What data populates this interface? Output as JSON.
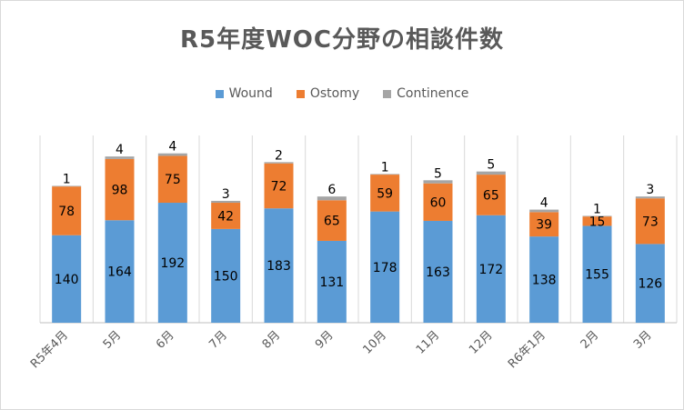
{
  "chart_data": {
    "type": "bar",
    "stacked": true,
    "title": "R5年度WOC分野の相談件数",
    "categories": [
      "R5年4月",
      "5月",
      "6月",
      "7月",
      "8月",
      "9月",
      "10月",
      "11月",
      "12月",
      "R6年1月",
      "2月",
      "3月"
    ],
    "series": [
      {
        "name": "Wound",
        "color": "#5b9bd5",
        "values": [
          140,
          164,
          192,
          150,
          183,
          131,
          178,
          163,
          172,
          138,
          155,
          126
        ]
      },
      {
        "name": "Ostomy",
        "color": "#ed7d31",
        "values": [
          78,
          98,
          75,
          42,
          72,
          65,
          59,
          60,
          65,
          39,
          15,
          73
        ]
      },
      {
        "name": "Continence",
        "color": "#a5a5a5",
        "values": [
          1,
          4,
          4,
          3,
          2,
          6,
          1,
          5,
          5,
          4,
          1,
          3
        ]
      }
    ],
    "legend": "top",
    "grid": true
  }
}
